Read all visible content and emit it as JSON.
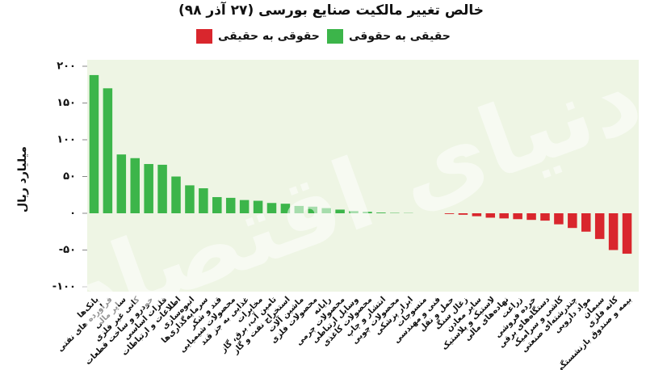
{
  "chart_data": {
    "type": "bar",
    "title": "خالص تغییر مالکیت صنایع بورسی (۲۷ آذر ۹۸)",
    "y_label": "میلیارد ریال",
    "watermark": "دنیای اقتصاد",
    "categories": [
      "بانک‌ها",
      "فراورده های نفتی",
      "سایر مالی",
      "کانی غیر فلزی",
      "خودرو و ساخت قطعات",
      "فلزات اساسی",
      "اطلاعات و ارتباطات",
      "انبوه‌سازی",
      "سرمایه‌گذاری‌ها",
      "قند و شکر",
      "محصولات شیمیایی",
      "غذایی به جز قند",
      "مخابرات",
      "تامین آب، برق، گاز",
      "استخراج نفت و گاز",
      "ماشین آلات",
      "محصولات فلزی",
      "رایانه",
      "محصولات چرمی",
      "وسایل ارتباطی",
      "محصولات کاغذی",
      "انتشار و چاپ",
      "محصولات چوبی",
      "ابزار پزشکی",
      "منسوجات",
      "فنی و مهندسی",
      "حمل و نقل",
      "زغال سنگ",
      "سایر معادن",
      "لاستیک و پلاستیک",
      "نهاده‌های مالی",
      "زراعت",
      "خرده فروشی",
      "دستگاه‌های برقی",
      "کاشی و سرامیک",
      "چندرشته‌ای صنعتی",
      "مواد دارویی",
      "سیمان",
      "کانه فلزی",
      "بیمه و صندوق بازنشستگی"
    ],
    "series": [
      {
        "name": "حقیقی به حقوقی",
        "color": "#3cb54a",
        "values": [
          188,
          170,
          80,
          75,
          67,
          66,
          50,
          38,
          34,
          22,
          21,
          18,
          17,
          14,
          13,
          10,
          9,
          7,
          5,
          3,
          2,
          1,
          0.5,
          0.3,
          0,
          0,
          null,
          null,
          null,
          null,
          null,
          null,
          null,
          null,
          null,
          null,
          null,
          null,
          null,
          null
        ]
      },
      {
        "name": "حقوقی به حقیقی",
        "color": "#d9262d",
        "values": [
          null,
          null,
          null,
          null,
          null,
          null,
          null,
          null,
          null,
          null,
          null,
          null,
          null,
          null,
          null,
          null,
          null,
          null,
          null,
          null,
          null,
          null,
          null,
          null,
          null,
          null,
          -1,
          -2,
          -4,
          -6,
          -7,
          -8,
          -9,
          -10,
          -15,
          -20,
          -25,
          -35,
          -50,
          -55
        ]
      }
    ],
    "ylim": [
      -100,
      200
    ],
    "yticks": [
      {
        "value": -100,
        "label": "-۱۰۰"
      },
      {
        "value": -50,
        "label": "-۵۰"
      },
      {
        "value": 0,
        "label": "۰"
      },
      {
        "value": 50,
        "label": "۵۰"
      },
      {
        "value": 100,
        "label": "۱۰۰"
      },
      {
        "value": 150,
        "label": "۱۵۰"
      },
      {
        "value": 200,
        "label": "۲۰۰"
      }
    ],
    "plot_background": "#eef5e4"
  }
}
